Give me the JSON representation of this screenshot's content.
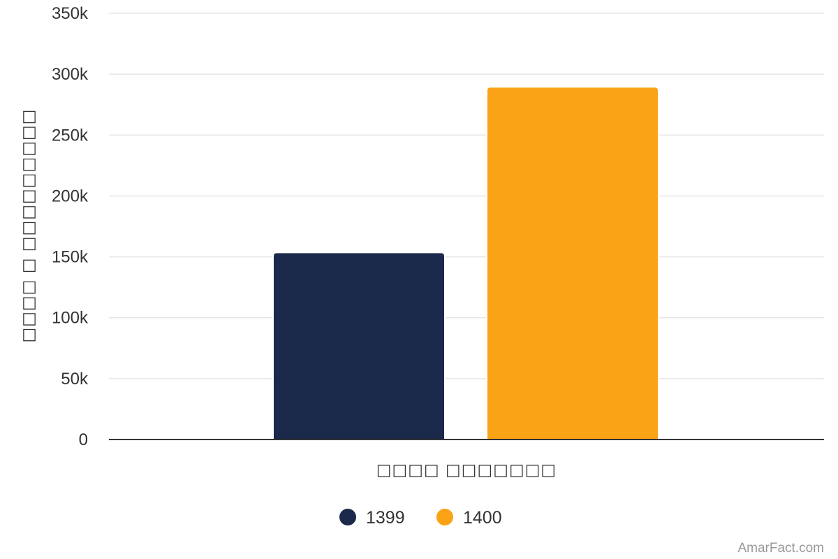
{
  "chart_data": {
    "type": "bar",
    "categories": [
      "□□□□ □□□□□□□"
    ],
    "series": [
      {
        "name": "1399",
        "values": [
          153000
        ],
        "color": "#1b2a4a"
      },
      {
        "name": "1400",
        "values": [
          289000
        ],
        "color": "#fba316"
      }
    ],
    "xlabel": "□□□□ □□□□□□□",
    "ylabel": "□□□□ □ □□□□□□□□□",
    "ylim": [
      0,
      350000
    ],
    "yticks": [
      0,
      50000,
      100000,
      150000,
      200000,
      250000,
      300000,
      350000
    ],
    "ytick_labels": [
      "0",
      "50k",
      "100k",
      "150k",
      "200k",
      "250k",
      "300k",
      "350k"
    ],
    "grid": true,
    "legend_position": "bottom-center",
    "grid_color": "#e6e6e6",
    "axis_color": "#333333"
  },
  "credit": "AmarFact.com"
}
